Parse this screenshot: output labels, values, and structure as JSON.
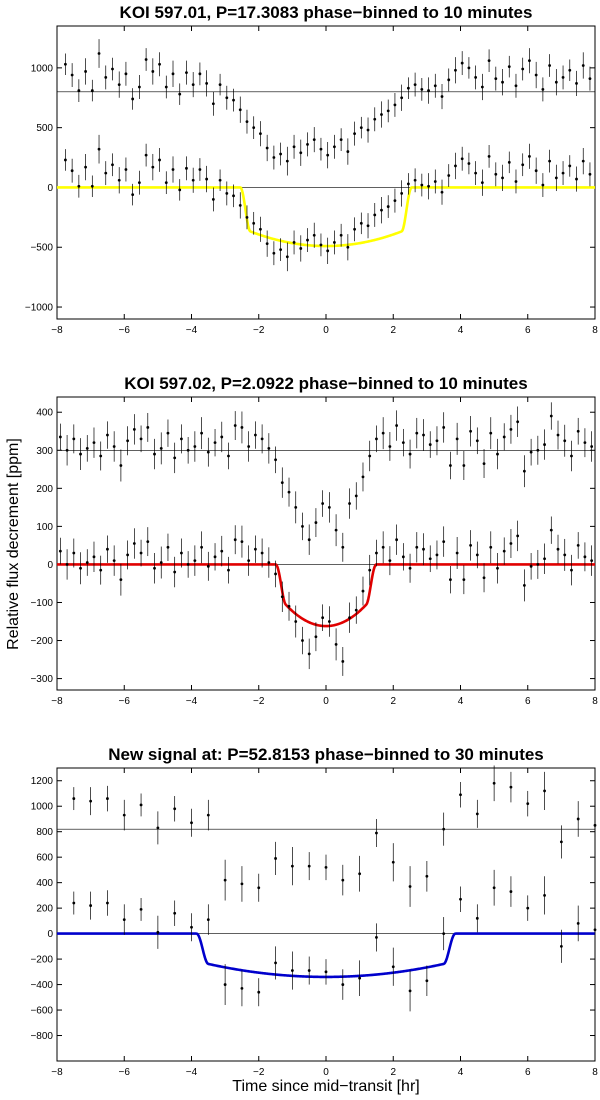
{
  "figure": {
    "ylabel": "Relative flux decrement [ppm]",
    "xlabel": "Time since mid−transit [hr]"
  },
  "chart_data": [
    {
      "type": "scatter",
      "title": "KOI 597.01, P=17.3083 phase−binned to 10 minutes",
      "xlim": [
        -8,
        8
      ],
      "ylim": [
        -1100,
        1350
      ],
      "xticks": [
        -8,
        -6,
        -4,
        -2,
        0,
        2,
        4,
        6,
        8
      ],
      "yticks": [
        -1000,
        -500,
        0,
        500,
        1000
      ],
      "hlines": [
        0,
        800
      ],
      "offset": 800,
      "bin_minutes": 10,
      "transit_model": {
        "color": "#ffff00",
        "depth": -490,
        "half_duration": 2.55,
        "ingress": 0.3,
        "curvature": 0.25
      },
      "series": [
        {
          "name": "binned",
          "x": [
            -7.75,
            -7.55,
            -7.35,
            -7.15,
            -6.95,
            -6.75,
            -6.55,
            -6.35,
            -6.15,
            -5.95,
            -5.75,
            -5.55,
            -5.35,
            -5.15,
            -4.95,
            -4.75,
            -4.55,
            -4.35,
            -4.15,
            -3.95,
            -3.75,
            -3.55,
            -3.35,
            -3.15,
            -2.95,
            -2.75,
            -2.55,
            -2.35,
            -2.15,
            -1.95,
            -1.75,
            -1.55,
            -1.35,
            -1.15,
            -0.95,
            -0.75,
            -0.55,
            -0.35,
            -0.15,
            0.05,
            0.25,
            0.45,
            0.65,
            0.85,
            1.05,
            1.25,
            1.45,
            1.65,
            1.85,
            2.05,
            2.25,
            2.45,
            2.65,
            2.85,
            3.05,
            3.25,
            3.45,
            3.65,
            3.85,
            4.05,
            4.25,
            4.45,
            4.65,
            4.85,
            5.05,
            5.25,
            5.45,
            5.65,
            5.85,
            6.05,
            6.25,
            6.45,
            6.65,
            6.85,
            7.05,
            7.25,
            7.45,
            7.65,
            7.85
          ],
          "y": [
            230,
            140,
            10,
            170,
            10,
            320,
            120,
            190,
            60,
            150,
            -60,
            40,
            270,
            170,
            230,
            40,
            150,
            -20,
            160,
            60,
            150,
            70,
            -100,
            60,
            -50,
            -70,
            -150,
            -250,
            -300,
            -350,
            -470,
            -550,
            -520,
            -580,
            -460,
            -510,
            -440,
            -400,
            -480,
            -530,
            -460,
            -400,
            -500,
            -350,
            -300,
            -320,
            -230,
            -190,
            -160,
            -110,
            -50,
            30,
            60,
            20,
            10,
            50,
            -40,
            100,
            180,
            240,
            200,
            120,
            40,
            260,
            110,
            80,
            210,
            50,
            190,
            260,
            140,
            20,
            220,
            80,
            120,
            180,
            70,
            220,
            110
          ],
          "err": [
            90,
            100,
            95,
            110,
            90,
            120,
            100,
            95,
            110,
            100,
            90,
            100,
            95,
            110,
            100,
            95,
            110,
            90,
            100,
            105,
            95,
            110,
            100,
            90,
            100,
            95,
            110,
            100,
            95,
            105,
            110,
            100,
            95,
            120,
            100,
            110,
            100,
            105,
            95,
            110,
            100,
            95,
            110,
            100,
            90,
            105,
            100,
            110,
            95,
            100,
            110,
            90,
            100,
            95,
            110,
            100,
            105,
            95,
            110,
            100,
            90,
            100,
            110,
            95,
            100,
            110,
            90,
            100,
            95,
            105,
            110,
            100,
            95,
            110,
            100,
            90,
            105,
            110,
            100
          ]
        }
      ]
    },
    {
      "type": "scatter",
      "title": "KOI 597.02, P=2.0922 phase−binned to 10 minutes",
      "xlim": [
        -8,
        8
      ],
      "ylim": [
        -330,
        440
      ],
      "xticks": [
        -8,
        -6,
        -4,
        -2,
        0,
        2,
        4,
        6,
        8
      ],
      "yticks": [
        -300,
        -200,
        -100,
        0,
        100,
        200,
        300,
        400
      ],
      "hlines": [
        0,
        300
      ],
      "offset": 300,
      "bin_minutes": 10,
      "transit_model": {
        "color": "#e00000",
        "depth": -162,
        "half_duration": 1.5,
        "ingress": 0.3,
        "curvature": 0.35
      },
      "series": [
        {
          "name": "binned",
          "x": [
            -7.9,
            -7.7,
            -7.5,
            -7.3,
            -7.1,
            -6.9,
            -6.7,
            -6.5,
            -6.3,
            -6.1,
            -5.9,
            -5.7,
            -5.5,
            -5.3,
            -5.1,
            -4.9,
            -4.7,
            -4.5,
            -4.3,
            -4.1,
            -3.9,
            -3.7,
            -3.5,
            -3.3,
            -3.1,
            -2.9,
            -2.7,
            -2.5,
            -2.3,
            -2.1,
            -1.9,
            -1.7,
            -1.5,
            -1.3,
            -1.1,
            -0.9,
            -0.7,
            -0.5,
            -0.3,
            -0.1,
            0.1,
            0.3,
            0.5,
            0.7,
            0.9,
            1.1,
            1.3,
            1.5,
            1.7,
            1.9,
            2.1,
            2.3,
            2.5,
            2.7,
            2.9,
            3.1,
            3.3,
            3.5,
            3.7,
            3.9,
            4.1,
            4.3,
            4.5,
            4.7,
            4.9,
            5.1,
            5.3,
            5.5,
            5.7,
            5.9,
            6.1,
            6.3,
            6.5,
            6.7,
            6.9,
            7.1,
            7.3,
            7.5,
            7.7,
            7.9
          ],
          "y": [
            35,
            0,
            30,
            -10,
            5,
            20,
            -15,
            40,
            10,
            -40,
            25,
            55,
            30,
            60,
            -10,
            5,
            45,
            -20,
            30,
            0,
            10,
            45,
            -5,
            20,
            35,
            -15,
            65,
            60,
            10,
            40,
            30,
            5,
            -25,
            -85,
            -110,
            -150,
            -200,
            -235,
            -190,
            -140,
            -150,
            -210,
            -255,
            -140,
            -120,
            -70,
            -15,
            30,
            45,
            10,
            65,
            20,
            -10,
            45,
            40,
            15,
            25,
            60,
            -40,
            30,
            -40,
            50,
            25,
            -35,
            45,
            -10,
            35,
            55,
            75,
            -55,
            -5,
            0,
            15,
            90,
            40,
            25,
            -15,
            50,
            20,
            10
          ],
          "err": [
            35,
            40,
            38,
            42,
            35,
            40,
            38,
            36,
            40,
            42,
            38,
            40,
            35,
            38,
            40,
            42,
            36,
            40,
            38,
            35,
            40,
            42,
            38,
            36,
            40,
            35,
            38,
            42,
            40,
            36,
            38,
            40,
            35,
            40,
            38,
            42,
            36,
            40,
            38,
            35,
            40,
            42,
            38,
            40,
            36,
            38,
            40,
            35,
            42,
            38,
            40,
            36,
            38,
            40,
            42,
            35,
            38,
            40,
            36,
            42,
            38,
            40,
            35,
            38,
            42,
            40,
            36,
            38,
            40,
            42,
            35,
            38,
            40,
            36,
            38,
            42,
            40,
            35,
            38,
            40
          ]
        }
      ]
    },
    {
      "type": "scatter",
      "title": "New signal at: P=52.8153 phase−binned to 30 minutes",
      "xlim": [
        -8,
        8
      ],
      "ylim": [
        -1000,
        1300
      ],
      "xticks": [
        -8,
        -6,
        -4,
        -2,
        0,
        2,
        4,
        6,
        8
      ],
      "yticks": [
        -800,
        -600,
        -400,
        -200,
        0,
        200,
        400,
        600,
        800,
        1000,
        1200
      ],
      "hlines": [
        0,
        820
      ],
      "offset": 820,
      "bin_minutes": 30,
      "transit_model": {
        "color": "#0000cc",
        "depth": -340,
        "half_duration": 3.85,
        "ingress": 0.35,
        "curvature": 0.3
      },
      "series": [
        {
          "name": "binned",
          "x": [
            -7.5,
            -7.0,
            -6.5,
            -6.0,
            -5.5,
            -5.0,
            -4.5,
            -4.0,
            -3.5,
            -3.0,
            -2.5,
            -2.0,
            -1.5,
            -1.0,
            -0.5,
            0.0,
            0.5,
            1.0,
            1.5,
            2.0,
            2.5,
            3.0,
            3.5,
            4.0,
            4.5,
            5.0,
            5.5,
            6.0,
            6.5,
            7.0,
            7.5,
            8.0
          ],
          "y": [
            240,
            220,
            240,
            110,
            190,
            10,
            160,
            50,
            110,
            -400,
            -430,
            -460,
            -230,
            -290,
            -290,
            -300,
            -400,
            -350,
            -30,
            -260,
            -450,
            -370,
            0,
            270,
            120,
            360,
            330,
            200,
            300,
            -100,
            80,
            30
          ],
          "err": [
            90,
            110,
            100,
            120,
            90,
            130,
            100,
            110,
            120,
            160,
            140,
            110,
            130,
            150,
            110,
            100,
            120,
            140,
            110,
            150,
            160,
            120,
            130,
            100,
            110,
            140,
            120,
            100,
            150,
            130,
            140,
            120
          ]
        }
      ]
    }
  ]
}
